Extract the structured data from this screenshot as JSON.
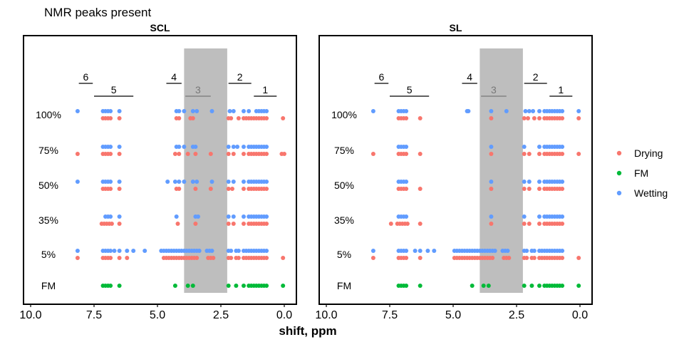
{
  "chart_data": {
    "type": "scatter",
    "title": "NMR peaks present",
    "xlabel": "shift, ppm",
    "ylabel": "",
    "xlim": [
      10.0,
      0.0
    ],
    "x_ticks": [
      "10.0",
      "7.5",
      "5.0",
      "2.5",
      "0.0"
    ],
    "x_tick_values": [
      10,
      7.5,
      5,
      2.5,
      0
    ],
    "y_categories": [
      "FM",
      "5%",
      "35%",
      "50%",
      "75%",
      "100%"
    ],
    "legend_position": "right",
    "legend": [
      {
        "name": "Drying",
        "color": "#F8766D"
      },
      {
        "name": "FM",
        "color": "#00BA38"
      },
      {
        "name": "Wetting",
        "color": "#619CFF"
      }
    ],
    "shaded_region_ppm": [
      2.25,
      3.95
    ],
    "regions": [
      {
        "label": "6",
        "from": 8.1,
        "to": 7.55,
        "level": "upper",
        "muted": false
      },
      {
        "label": "5",
        "from": 7.5,
        "to": 5.95,
        "level": "lower",
        "muted": false
      },
      {
        "label": "4",
        "from": 4.65,
        "to": 4.05,
        "level": "upper",
        "muted": false
      },
      {
        "label": "3",
        "from": 3.9,
        "to": 2.9,
        "level": "lower",
        "muted": true
      },
      {
        "label": "2",
        "from": 2.2,
        "to": 1.3,
        "level": "upper",
        "muted": false
      },
      {
        "label": "1",
        "from": 1.2,
        "to": 0.3,
        "level": "lower",
        "muted": false
      }
    ],
    "panels": [
      {
        "name": "SCL",
        "series": {
          "Drying": {
            "100%": [
              7.15,
              7.05,
              6.95,
              6.85,
              6.5,
              4.25,
              4.15,
              3.7,
              3.6,
              2.2,
              2.1,
              1.8,
              1.6,
              1.5,
              1.4,
              1.3,
              1.2,
              1.1,
              1.0,
              0.9,
              0.8,
              0.7,
              0.05
            ],
            "75%": [
              8.15,
              7.15,
              7.05,
              6.95,
              6.85,
              6.5,
              4.3,
              4.15,
              3.8,
              3.5,
              2.9,
              2.2,
              2.0,
              1.6,
              1.4,
              1.3,
              1.2,
              1.1,
              1.0,
              0.9,
              0.8,
              0.7,
              0.1,
              0.0
            ],
            "50%": [
              7.15,
              7.05,
              6.95,
              6.85,
              6.5,
              4.25,
              4.15,
              3.5,
              2.9,
              2.2,
              2.05,
              1.6,
              1.4,
              1.3,
              1.2,
              1.1,
              1.0,
              0.9,
              0.8,
              0.7
            ],
            "35%": [
              7.2,
              7.1,
              7.0,
              6.9,
              6.8,
              6.5,
              4.2,
              3.5,
              2.2,
              2.0,
              1.6,
              1.4,
              1.3,
              1.2,
              1.1,
              1.0,
              0.9,
              0.8,
              0.7
            ],
            "5%": [
              8.15,
              7.15,
              7.05,
              6.95,
              6.85,
              6.5,
              6.2,
              4.75,
              4.65,
              4.55,
              4.45,
              4.35,
              4.25,
              4.15,
              4.05,
              3.95,
              3.85,
              3.75,
              3.65,
              3.55,
              3.45,
              3.0,
              2.9,
              2.8,
              2.2,
              2.1,
              1.9,
              1.8,
              1.6,
              1.5,
              1.4,
              1.3,
              1.2,
              1.1,
              1.0,
              0.9,
              0.8,
              0.7,
              0.05
            ]
          },
          "FM": {
            "FM": [
              7.15,
              7.05,
              6.95,
              6.85,
              6.5,
              4.3,
              3.8,
              3.6,
              2.2,
              1.9,
              1.6,
              1.4,
              1.3,
              1.2,
              1.1,
              1.0,
              0.9,
              0.8,
              0.7,
              0.05
            ]
          },
          "Wetting": {
            "100%": [
              8.15,
              7.15,
              7.05,
              6.95,
              6.85,
              6.5,
              4.25,
              4.15,
              3.95,
              3.6,
              3.45,
              2.85,
              2.15,
              2.0,
              1.6,
              1.4,
              1.1,
              1.0,
              0.9,
              0.8,
              0.7
            ],
            "75%": [
              7.15,
              7.05,
              6.95,
              6.85,
              6.5,
              4.25,
              4.15,
              3.95,
              3.6,
              3.5,
              2.2,
              2.0,
              1.85,
              1.6,
              1.4,
              1.3,
              1.2,
              1.1,
              1.0,
              0.9,
              0.8,
              0.7
            ],
            "50%": [
              8.15,
              7.15,
              7.05,
              6.95,
              6.85,
              6.5,
              4.6,
              4.3,
              4.15,
              3.95,
              3.6,
              3.45,
              2.85,
              2.2,
              2.0,
              1.6,
              1.4,
              1.3,
              1.2,
              1.1,
              1.0,
              0.9,
              0.8,
              0.7
            ],
            "35%": [
              7.05,
              6.95,
              6.85,
              6.5,
              4.25,
              3.5,
              3.4,
              2.2,
              2.0,
              1.6,
              1.4,
              1.3,
              1.2,
              1.1,
              1.0,
              0.9,
              0.8,
              0.7
            ],
            "5%": [
              8.15,
              7.15,
              7.05,
              6.95,
              6.85,
              6.7,
              6.5,
              6.2,
              5.95,
              5.5,
              4.85,
              4.75,
              4.65,
              4.55,
              4.45,
              4.35,
              4.25,
              4.15,
              4.05,
              3.95,
              3.85,
              3.75,
              3.65,
              3.55,
              3.45,
              3.35,
              3.05,
              2.95,
              2.85,
              2.2,
              2.1,
              1.9,
              1.8,
              1.6,
              1.5,
              1.4,
              1.3,
              1.2,
              1.1,
              1.0,
              0.9,
              0.8,
              0.7
            ]
          }
        }
      },
      {
        "name": "SL",
        "series": {
          "Drying": {
            "100%": [
              7.15,
              7.05,
              6.95,
              6.85,
              6.3,
              3.5,
              2.2,
              2.05,
              1.8,
              1.6,
              1.4,
              1.3,
              1.2,
              1.1,
              1.0,
              0.9,
              0.8,
              0.7,
              0.05
            ],
            "75%": [
              8.15,
              7.15,
              7.05,
              6.95,
              6.85,
              6.3,
              3.5,
              2.2,
              2.0,
              1.6,
              1.4,
              1.3,
              1.2,
              1.1,
              1.0,
              0.9,
              0.8,
              0.7,
              0.05
            ],
            "50%": [
              7.15,
              7.05,
              6.95,
              6.85,
              6.3,
              3.5,
              2.2,
              2.0,
              1.6,
              1.4,
              1.3,
              1.2,
              1.1,
              1.0,
              0.9,
              0.8,
              0.7
            ],
            "35%": [
              7.45,
              7.2,
              7.1,
              7.0,
              6.9,
              6.8,
              6.3,
              3.5,
              2.2,
              2.0,
              1.6,
              1.4,
              1.3,
              1.2,
              1.1,
              1.0,
              0.9,
              0.8,
              0.7
            ],
            "5%": [
              8.15,
              7.15,
              7.05,
              6.95,
              6.85,
              6.3,
              4.95,
              4.85,
              4.75,
              4.65,
              4.55,
              4.45,
              4.35,
              4.25,
              4.15,
              4.05,
              3.95,
              3.85,
              3.75,
              3.65,
              3.55,
              3.45,
              3.0,
              2.9,
              2.8,
              2.2,
              2.1,
              1.9,
              1.8,
              1.6,
              1.5,
              1.4,
              1.3,
              1.2,
              1.1,
              1.0,
              0.9,
              0.8,
              0.7,
              0.05
            ]
          },
          "FM": {
            "FM": [
              7.15,
              7.05,
              6.95,
              6.85,
              6.3,
              4.25,
              3.8,
              3.6,
              2.2,
              1.9,
              1.6,
              1.4,
              1.3,
              1.2,
              1.1,
              1.0,
              0.9,
              0.8,
              0.7,
              0.05
            ]
          },
          "Wetting": {
            "100%": [
              8.15,
              7.15,
              7.05,
              6.95,
              6.85,
              4.45,
              4.4,
              3.5,
              2.9,
              2.15,
              2.0,
              1.85,
              1.6,
              1.4,
              1.3,
              1.2,
              1.1,
              1.0,
              0.9,
              0.8,
              0.7,
              0.05
            ],
            "75%": [
              7.15,
              7.05,
              6.95,
              6.85,
              3.5,
              2.2,
              1.6,
              1.4,
              1.3,
              1.2,
              1.1,
              1.0,
              0.9,
              0.8,
              0.7
            ],
            "50%": [
              7.15,
              7.05,
              6.95,
              6.85,
              3.5,
              2.2,
              2.0,
              1.6,
              1.4,
              1.3,
              1.2,
              1.1,
              1.0,
              0.9,
              0.8,
              0.7
            ],
            "35%": [
              7.15,
              7.05,
              6.95,
              6.85,
              3.5,
              2.2,
              1.6,
              1.4,
              1.3,
              1.2,
              1.1,
              1.0,
              0.9,
              0.8,
              0.7
            ],
            "5%": [
              8.15,
              7.15,
              7.05,
              6.95,
              6.85,
              6.5,
              6.3,
              6.0,
              5.75,
              4.95,
              4.85,
              4.75,
              4.65,
              4.55,
              4.45,
              4.35,
              4.25,
              4.15,
              4.05,
              3.95,
              3.85,
              3.75,
              3.65,
              3.55,
              3.45,
              3.35,
              3.05,
              2.95,
              2.85,
              2.2,
              2.1,
              1.9,
              1.8,
              1.6,
              1.5,
              1.4,
              1.3,
              1.2,
              1.1,
              1.0,
              0.9,
              0.8,
              0.7
            ]
          }
        }
      }
    ]
  }
}
